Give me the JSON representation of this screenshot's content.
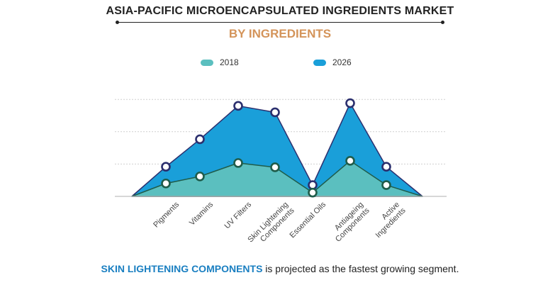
{
  "header": {
    "title": "ASIA-PACIFIC MICROENCAPSULATED INGREDIENTS MARKET",
    "subtitle": "BY INGREDIENTS"
  },
  "colors": {
    "subtitle": "#d4945a",
    "series_2018": "#5bbfbf",
    "series_2026": "#1a9fd9",
    "marker_2018": "#1f5c4a",
    "marker_2026": "#2b2f6e",
    "highlight": "#1a7fc1"
  },
  "chart_data": {
    "type": "area",
    "categories": [
      "Pigments",
      "Vitamins",
      "UV Filters",
      "Skin Lightening Components",
      "Essential Oils",
      "Antiageing Components",
      "Active Ingredients"
    ],
    "series": [
      {
        "name": "2018",
        "values": [
          2.4,
          3.7,
          6.2,
          5.4,
          0.7,
          6.6,
          2.1
        ]
      },
      {
        "name": "2026",
        "values": [
          5.5,
          10.6,
          16.8,
          15.6,
          2.1,
          17.3,
          5.5
        ]
      }
    ],
    "ylim": [
      0,
      20
    ],
    "grid": true,
    "legend_position": "top"
  },
  "caption": {
    "highlight": "SKIN LIGHTENING COMPONENTS",
    "rest": " is projected as the fastest growing segment."
  }
}
